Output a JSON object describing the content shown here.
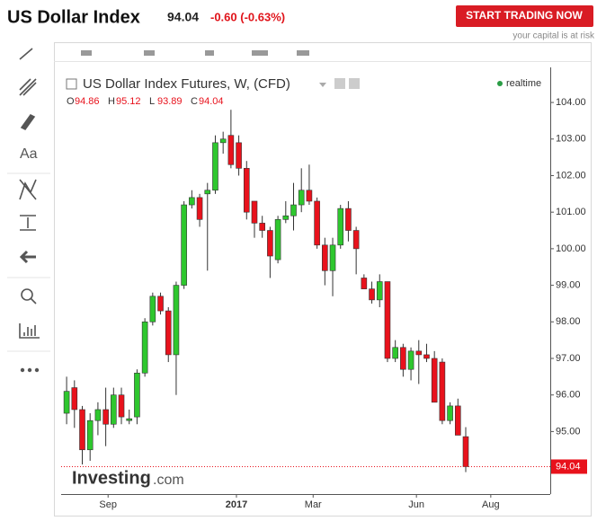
{
  "header": {
    "title": "US Dollar Index",
    "change": "-0.60 (-0.63%)",
    "button": "START TRADING NOW",
    "risk_note": "your capital is at risk"
  },
  "chart_data": {
    "type": "candlestick",
    "title": "US Dollar Index Futures, W, (CFD)",
    "status": "realtime",
    "ohlc_labels": [
      "O",
      "H",
      "L",
      "C"
    ],
    "watermark": [
      "Investing",
      ".com"
    ],
    "categories": [
      null,
      null,
      null,
      null,
      null,
      null,
      null,
      null,
      null,
      null,
      null,
      null,
      null,
      null,
      null,
      null,
      null,
      null,
      null,
      null,
      null,
      null,
      null,
      null,
      null,
      null,
      null,
      null,
      null,
      null,
      null,
      null,
      null,
      null,
      null,
      null,
      null,
      null,
      null,
      null,
      null,
      null,
      null,
      null,
      null,
      null,
      null,
      null,
      null,
      null,
      null,
      null
    ],
    "open": [
      95.5,
      96.2,
      95.6,
      94.5,
      95.3,
      95.6,
      95.2,
      96.0,
      95.3,
      95.4,
      96.6,
      98.0,
      98.7,
      98.3,
      97.1,
      99.0,
      101.2,
      101.4,
      101.5,
      101.6,
      102.9,
      103.1,
      102.9,
      102.2,
      101.3,
      100.7,
      100.5,
      99.7,
      100.8,
      100.9,
      101.2,
      101.6,
      101.3,
      100.1,
      99.4,
      100.1,
      101.1,
      100.5,
      99.2,
      98.9,
      98.6,
      99.1,
      97.0,
      97.3,
      96.7,
      97.2,
      97.1,
      97.0,
      96.9,
      95.3,
      95.7,
      94.86
    ],
    "high": [
      96.5,
      96.4,
      95.7,
      95.5,
      95.8,
      96.2,
      96.2,
      96.2,
      95.6,
      96.7,
      98.1,
      98.8,
      98.8,
      98.4,
      99.1,
      101.3,
      101.6,
      101.5,
      101.8,
      103.1,
      103.2,
      103.8,
      103.1,
      102.4,
      101.3,
      100.9,
      100.6,
      100.9,
      101.3,
      101.8,
      102.2,
      102.3,
      101.4,
      100.3,
      100.3,
      101.2,
      101.3,
      100.6,
      99.3,
      99.1,
      99.3,
      99.1,
      97.5,
      97.4,
      97.3,
      97.5,
      97.4,
      97.2,
      97.0,
      95.8,
      95.9,
      95.12
    ],
    "low": [
      95.2,
      95.1,
      94.1,
      94.2,
      94.9,
      94.6,
      95.1,
      95.2,
      95.2,
      95.2,
      96.5,
      97.9,
      98.2,
      96.9,
      96.0,
      98.9,
      101.1,
      100.6,
      99.4,
      101.5,
      102.6,
      102.2,
      102.0,
      100.8,
      100.3,
      100.3,
      99.2,
      99.6,
      100.7,
      100.5,
      101.0,
      101.2,
      100.0,
      99.0,
      98.7,
      100.0,
      100.2,
      99.3,
      98.9,
      98.5,
      98.4,
      96.9,
      96.9,
      96.5,
      96.4,
      96.3,
      96.9,
      95.8,
      95.2,
      95.2,
      94.9,
      93.89
    ],
    "close": [
      96.1,
      95.6,
      94.5,
      95.3,
      95.6,
      95.2,
      96.0,
      95.4,
      95.35,
      96.6,
      98.0,
      98.7,
      98.3,
      97.1,
      99.0,
      101.2,
      101.4,
      100.8,
      101.6,
      102.9,
      103.0,
      102.3,
      102.2,
      101.0,
      100.7,
      100.5,
      99.8,
      100.8,
      100.9,
      101.2,
      101.6,
      101.3,
      100.1,
      99.4,
      100.1,
      101.1,
      100.5,
      100.0,
      98.9,
      98.6,
      99.1,
      97.0,
      97.3,
      96.7,
      97.2,
      97.1,
      97.0,
      95.8,
      95.3,
      95.7,
      94.9,
      94.04
    ],
    "up_color": "#2ec72e",
    "down_color": "#e8121c",
    "grid": false,
    "xlim": [
      -0.7,
      61.8
    ],
    "xticks": [
      {
        "value": 5.3,
        "label": "Sep"
      },
      {
        "value": 21.7,
        "label": "2017"
      },
      {
        "value": 31.5,
        "label": "Mar"
      },
      {
        "value": 44.7,
        "label": "Jun"
      },
      {
        "value": 54.2,
        "label": "Aug"
      }
    ],
    "ylim": [
      93.29,
      104.96
    ],
    "yticks": [
      {
        "value": 95,
        "label": "95.00"
      },
      {
        "value": 96,
        "label": "96.00"
      },
      {
        "value": 97,
        "label": "97.00"
      },
      {
        "value": 98,
        "label": "98.00"
      },
      {
        "value": 99,
        "label": "99.00"
      },
      {
        "value": 100,
        "label": "100.00"
      },
      {
        "value": 101,
        "label": "101.00"
      },
      {
        "value": 102,
        "label": "102.00"
      },
      {
        "value": 103,
        "label": "103.00"
      },
      {
        "value": 104,
        "label": "104.00"
      }
    ]
  }
}
